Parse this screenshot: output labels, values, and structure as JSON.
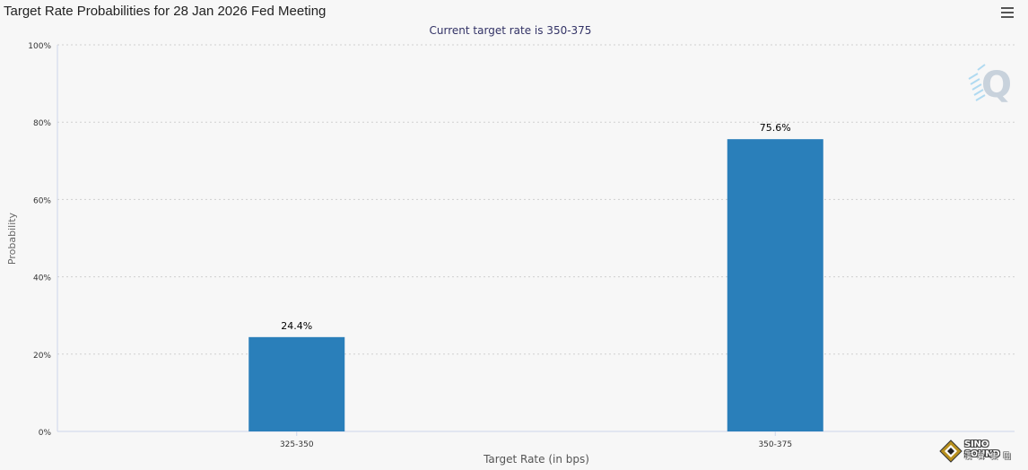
{
  "header": {
    "title": "Target Rate Probabilities for 28 Jan 2026 Fed Meeting",
    "menu_icon": "hamburger-menu-icon"
  },
  "chart_data": {
    "type": "bar",
    "title": "Target Rate Probabilities for 28 Jan 2026 Fed Meeting",
    "subtitle": "Current target rate is 350-375",
    "xlabel": "Target Rate (in bps)",
    "ylabel": "Probability",
    "categories": [
      "325-350",
      "350-375"
    ],
    "values": [
      24.4,
      75.6
    ],
    "data_labels": [
      "24.4%",
      "75.6%"
    ],
    "ylim": [
      0,
      100
    ],
    "yticks": [
      0,
      20,
      40,
      60,
      80,
      100
    ],
    "ytick_labels": [
      "0%",
      "20%",
      "40%",
      "60%",
      "80%",
      "100%"
    ],
    "grid": true,
    "legend": "none",
    "bar_color": "#2a7fba"
  },
  "branding": {
    "watermark_icon": "q-watermark-icon",
    "logo_text": "SINO SOUND",
    "logo_sub": "漢 聲 集 團"
  }
}
